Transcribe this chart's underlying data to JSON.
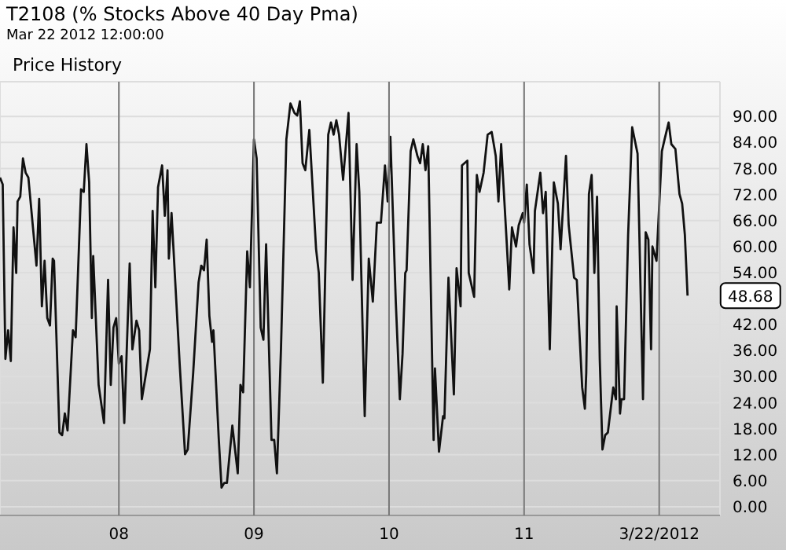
{
  "chart_data": {
    "type": "line",
    "title": "T2108 (% Stocks Above 40 Day Pma)",
    "subtitle": "Mar 22 2012 12:00:00",
    "annotations": [
      "Price History",
      {
        "text": "48.68",
        "x": 2012.21,
        "y": 48.68
      }
    ],
    "x": [
      2007.12,
      2007.14,
      2007.16,
      2007.18,
      2007.2,
      2007.22,
      2007.24,
      2007.25,
      2007.27,
      2007.29,
      2007.31,
      2007.33,
      2007.39,
      2007.41,
      2007.43,
      2007.45,
      2007.47,
      2007.49,
      2007.51,
      2007.52,
      2007.56,
      2007.58,
      2007.6,
      2007.62,
      2007.66,
      2007.68,
      2007.72,
      2007.74,
      2007.76,
      2007.78,
      2007.8,
      2007.81,
      2007.85,
      2007.89,
      2007.92,
      2007.94,
      2007.96,
      2007.98,
      2008.0,
      2008.02,
      2008.04,
      2008.08,
      2008.1,
      2008.13,
      2008.15,
      2008.17,
      2008.23,
      2008.25,
      2008.27,
      2008.29,
      2008.32,
      2008.34,
      2008.36,
      2008.37,
      2008.39,
      2008.45,
      2008.49,
      2008.51,
      2008.55,
      2008.59,
      2008.61,
      2008.63,
      2008.65,
      2008.67,
      2008.69,
      2008.7,
      2008.74,
      2008.76,
      2008.78,
      2008.8,
      2008.84,
      2008.88,
      2008.9,
      2008.92,
      2008.95,
      2008.97,
      2009.0,
      2009.02,
      2009.05,
      2009.07,
      2009.09,
      2009.13,
      2009.15,
      2009.17,
      2009.2,
      2009.24,
      2009.27,
      2009.3,
      2009.32,
      2009.34,
      2009.36,
      2009.38,
      2009.41,
      2009.46,
      2009.48,
      2009.51,
      2009.55,
      2009.57,
      2009.59,
      2009.61,
      2009.63,
      2009.66,
      2009.7,
      2009.73,
      2009.76,
      2009.78,
      2009.82,
      2009.85,
      2009.88,
      2009.91,
      2009.94,
      2009.97,
      2009.99,
      2010.01,
      2010.05,
      2010.08,
      2010.1,
      2010.12,
      2010.13,
      2010.16,
      2010.18,
      2010.21,
      2010.23,
      2010.25,
      2010.27,
      2010.29,
      2010.33,
      2010.34,
      2010.37,
      2010.4,
      2010.41,
      2010.44,
      2010.48,
      2010.5,
      2010.53,
      2010.54,
      2010.58,
      2010.59,
      2010.63,
      2010.65,
      2010.67,
      2010.7,
      2010.73,
      2010.76,
      2010.79,
      2010.81,
      2010.83,
      2010.87,
      2010.89,
      2010.91,
      2010.94,
      2010.96,
      2010.99,
      2011.0,
      2011.02,
      2011.04,
      2011.07,
      2011.08,
      2011.12,
      2011.14,
      2011.16,
      2011.19,
      2011.22,
      2011.25,
      2011.27,
      2011.31,
      2011.33,
      2011.37,
      2011.39,
      2011.43,
      2011.45,
      2011.46,
      2011.48,
      2011.5,
      2011.52,
      2011.54,
      2011.56,
      2011.58,
      2011.6,
      2011.62,
      2011.66,
      2011.68,
      2011.685,
      2011.71,
      2011.72,
      2011.74,
      2011.77,
      2011.8,
      2011.84,
      2011.88,
      2011.9,
      2011.92,
      2011.94,
      2011.95,
      2011.98,
      2012.02,
      2012.04,
      2012.07,
      2012.09,
      2012.12,
      2012.15,
      2012.17,
      2012.19,
      2012.21
    ],
    "series": [
      {
        "color": "#111111",
        "values": [
          75.9,
          74.3,
          34.1,
          40.7,
          33.6,
          64.4,
          53.9,
          70.4,
          71.5,
          80.3,
          77.0,
          75.9,
          55.6,
          71.0,
          46.2,
          56.7,
          43.5,
          41.8,
          57.2,
          56.7,
          17.1,
          16.5,
          21.5,
          17.6,
          40.7,
          39.1,
          73.2,
          72.6,
          83.6,
          74.8,
          43.5,
          57.8,
          28.1,
          19.3,
          52.3,
          28.1,
          41.3,
          43.5,
          33.0,
          34.7,
          19.3,
          56.1,
          36.3,
          42.9,
          40.7,
          24.8,
          36.3,
          68.2,
          50.6,
          73.7,
          78.7,
          67.1,
          77.6,
          57.2,
          67.7,
          33.0,
          12.1,
          13.2,
          30.8,
          51.7,
          55.6,
          54.5,
          61.6,
          44.0,
          38.0,
          40.7,
          15.4,
          4.4,
          5.5,
          5.5,
          18.7,
          7.7,
          28.1,
          26.4,
          58.9,
          50.6,
          84.7,
          80.3,
          41.3,
          38.5,
          60.5,
          15.4,
          15.4,
          7.7,
          36.3,
          84.7,
          93.0,
          90.8,
          90.2,
          93.5,
          79.2,
          77.6,
          86.9,
          59.4,
          53.9,
          28.6,
          85.8,
          88.6,
          85.8,
          89.1,
          85.8,
          75.4,
          90.8,
          52.3,
          83.6,
          72.6,
          20.9,
          57.2,
          47.3,
          65.5,
          65.5,
          78.7,
          70.4,
          85.3,
          47.3,
          24.8,
          35.2,
          53.9,
          54.5,
          82.0,
          84.7,
          80.9,
          79.2,
          83.6,
          77.6,
          83.1,
          15.4,
          31.9,
          12.7,
          20.9,
          20.4,
          52.8,
          25.9,
          55.0,
          46.2,
          78.7,
          79.8,
          53.9,
          48.4,
          76.5,
          72.6,
          77.0,
          85.8,
          86.4,
          80.9,
          70.4,
          83.6,
          61.6,
          50.1,
          64.4,
          60.0,
          64.9,
          67.7,
          65.5,
          74.3,
          60.5,
          53.9,
          68.2,
          77.0,
          67.7,
          72.6,
          36.3,
          74.8,
          69.9,
          59.4,
          80.9,
          64.9,
          52.8,
          52.3,
          27.5,
          22.6,
          30.8,
          72.1,
          76.5,
          53.9,
          71.5,
          34.1,
          13.2,
          16.5,
          17.1,
          27.5,
          24.8,
          46.2,
          21.5,
          24.8,
          24.8,
          62.7,
          87.5,
          81.4,
          24.8,
          63.3,
          61.6,
          36.3,
          60.0,
          56.7,
          82.0,
          84.7,
          88.6,
          83.6,
          82.5,
          72.1,
          69.9,
          62.7,
          48.68
        ]
      }
    ],
    "xlim": [
      2007.12,
      2012.45
    ],
    "xticks": [
      {
        "value": 2008,
        "label": "08"
      },
      {
        "value": 2009,
        "label": "09"
      },
      {
        "value": 2010,
        "label": "10"
      },
      {
        "value": 2011,
        "label": "11"
      },
      {
        "value": 2012,
        "label": "3/22/2012"
      }
    ],
    "ylim": [
      -2,
      98
    ],
    "yticks": [
      {
        "value": 0,
        "label": "0.00"
      },
      {
        "value": 6,
        "label": "6.00"
      },
      {
        "value": 12,
        "label": "12.00"
      },
      {
        "value": 18,
        "label": "18.00"
      },
      {
        "value": 24,
        "label": "24.00"
      },
      {
        "value": 30,
        "label": "30.00"
      },
      {
        "value": 36,
        "label": "36.00"
      },
      {
        "value": 42,
        "label": "42.00"
      },
      {
        "value": 54,
        "label": "54.00"
      },
      {
        "value": 60,
        "label": "60.00"
      },
      {
        "value": 66,
        "label": "66.00"
      },
      {
        "value": 72,
        "label": "72.00"
      },
      {
        "value": 78,
        "label": "78.00"
      },
      {
        "value": 84,
        "label": "84.00"
      },
      {
        "value": 90,
        "label": "90.00"
      }
    ],
    "grid": true
  }
}
